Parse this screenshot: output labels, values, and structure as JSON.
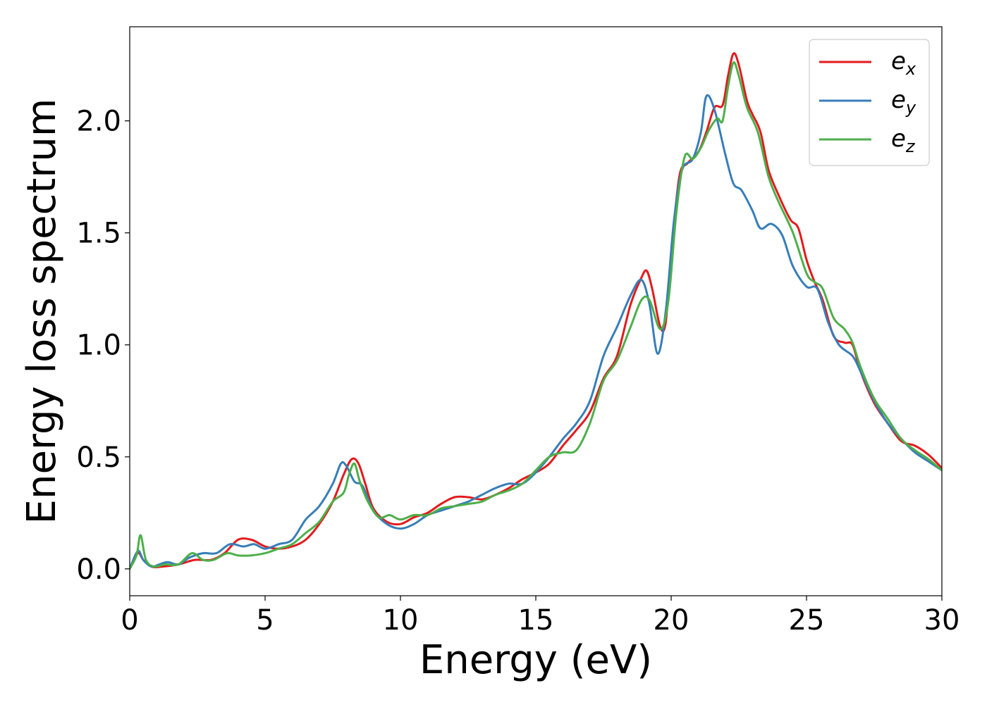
{
  "chart_data": {
    "type": "line",
    "title": "",
    "xlabel": "Energy (eV)",
    "ylabel": "Energy loss spectrum",
    "xlim": [
      0,
      30
    ],
    "ylim": [
      -0.12,
      2.42
    ],
    "xticks": [
      0,
      5,
      10,
      15,
      20,
      25,
      30
    ],
    "xtick_labels": [
      "0",
      "5",
      "10",
      "15",
      "20",
      "25",
      "30"
    ],
    "yticks": [
      0.0,
      0.5,
      1.0,
      1.5,
      2.0
    ],
    "ytick_labels": [
      "0.0",
      "0.5",
      "1.0",
      "1.5",
      "2.0"
    ],
    "grid": false,
    "legend_position": "top-right",
    "series": [
      {
        "name": "e_x",
        "legend_base": "e",
        "legend_sub": "x",
        "color": "#e41a1c",
        "points": [
          [
            0,
            0.0
          ],
          [
            0.3,
            0.07
          ],
          [
            0.5,
            0.04
          ],
          [
            0.8,
            0.01
          ],
          [
            1.2,
            0.01
          ],
          [
            1.8,
            0.02
          ],
          [
            2.4,
            0.04
          ],
          [
            3.0,
            0.04
          ],
          [
            3.5,
            0.07
          ],
          [
            4.0,
            0.13
          ],
          [
            4.5,
            0.13
          ],
          [
            5.0,
            0.1
          ],
          [
            5.5,
            0.09
          ],
          [
            6.0,
            0.1
          ],
          [
            6.5,
            0.13
          ],
          [
            7.0,
            0.2
          ],
          [
            7.5,
            0.3
          ],
          [
            7.9,
            0.42
          ],
          [
            8.2,
            0.49
          ],
          [
            8.45,
            0.47
          ],
          [
            8.7,
            0.38
          ],
          [
            9.0,
            0.27
          ],
          [
            9.5,
            0.21
          ],
          [
            10.0,
            0.2
          ],
          [
            10.5,
            0.23
          ],
          [
            11.0,
            0.25
          ],
          [
            11.5,
            0.29
          ],
          [
            12.0,
            0.32
          ],
          [
            12.5,
            0.32
          ],
          [
            13.0,
            0.31
          ],
          [
            13.5,
            0.33
          ],
          [
            14.0,
            0.36
          ],
          [
            14.5,
            0.4
          ],
          [
            15.0,
            0.43
          ],
          [
            15.5,
            0.47
          ],
          [
            16.0,
            0.55
          ],
          [
            16.5,
            0.62
          ],
          [
            17.0,
            0.7
          ],
          [
            17.5,
            0.85
          ],
          [
            18.0,
            0.95
          ],
          [
            18.5,
            1.18
          ],
          [
            18.9,
            1.3
          ],
          [
            19.1,
            1.33
          ],
          [
            19.3,
            1.25
          ],
          [
            19.6,
            1.08
          ],
          [
            19.8,
            1.1
          ],
          [
            20.0,
            1.4
          ],
          [
            20.3,
            1.75
          ],
          [
            20.6,
            1.81
          ],
          [
            21.0,
            1.86
          ],
          [
            21.3,
            1.95
          ],
          [
            21.6,
            2.06
          ],
          [
            21.9,
            2.07
          ],
          [
            22.1,
            2.2
          ],
          [
            22.3,
            2.3
          ],
          [
            22.5,
            2.25
          ],
          [
            22.8,
            2.09
          ],
          [
            23.0,
            2.03
          ],
          [
            23.3,
            1.95
          ],
          [
            23.6,
            1.78
          ],
          [
            24.0,
            1.66
          ],
          [
            24.4,
            1.56
          ],
          [
            24.7,
            1.52
          ],
          [
            25.0,
            1.38
          ],
          [
            25.3,
            1.28
          ],
          [
            25.6,
            1.2
          ],
          [
            26.0,
            1.04
          ],
          [
            26.4,
            1.01
          ],
          [
            26.7,
            1.0
          ],
          [
            27.0,
            0.88
          ],
          [
            27.5,
            0.74
          ],
          [
            28.0,
            0.65
          ],
          [
            28.5,
            0.57
          ],
          [
            29.0,
            0.55
          ],
          [
            29.5,
            0.51
          ],
          [
            30.0,
            0.45
          ]
        ]
      },
      {
        "name": "e_y",
        "legend_base": "e",
        "legend_sub": "y",
        "color": "#377eb8",
        "points": [
          [
            0,
            0.0
          ],
          [
            0.3,
            0.08
          ],
          [
            0.5,
            0.04
          ],
          [
            0.8,
            0.01
          ],
          [
            1.1,
            0.02
          ],
          [
            1.4,
            0.03
          ],
          [
            1.8,
            0.02
          ],
          [
            2.2,
            0.05
          ],
          [
            2.7,
            0.07
          ],
          [
            3.2,
            0.07
          ],
          [
            3.7,
            0.11
          ],
          [
            4.2,
            0.1
          ],
          [
            4.6,
            0.11
          ],
          [
            5.0,
            0.09
          ],
          [
            5.5,
            0.11
          ],
          [
            6.0,
            0.13
          ],
          [
            6.5,
            0.22
          ],
          [
            7.0,
            0.28
          ],
          [
            7.5,
            0.38
          ],
          [
            7.8,
            0.47
          ],
          [
            8.0,
            0.46
          ],
          [
            8.3,
            0.39
          ],
          [
            8.6,
            0.37
          ],
          [
            9.0,
            0.26
          ],
          [
            9.5,
            0.2
          ],
          [
            10.0,
            0.18
          ],
          [
            10.5,
            0.2
          ],
          [
            11.0,
            0.24
          ],
          [
            11.5,
            0.26
          ],
          [
            12.0,
            0.28
          ],
          [
            12.5,
            0.3
          ],
          [
            13.0,
            0.33
          ],
          [
            13.5,
            0.36
          ],
          [
            14.0,
            0.38
          ],
          [
            14.5,
            0.38
          ],
          [
            15.0,
            0.43
          ],
          [
            15.5,
            0.5
          ],
          [
            16.0,
            0.58
          ],
          [
            16.5,
            0.65
          ],
          [
            17.0,
            0.75
          ],
          [
            17.5,
            0.95
          ],
          [
            18.0,
            1.08
          ],
          [
            18.5,
            1.22
          ],
          [
            18.9,
            1.29
          ],
          [
            19.2,
            1.18
          ],
          [
            19.5,
            0.96
          ],
          [
            19.8,
            1.15
          ],
          [
            20.1,
            1.55
          ],
          [
            20.4,
            1.78
          ],
          [
            20.8,
            1.83
          ],
          [
            21.1,
            1.95
          ],
          [
            21.3,
            2.11
          ],
          [
            21.6,
            2.05
          ],
          [
            22.0,
            1.85
          ],
          [
            22.3,
            1.72
          ],
          [
            22.6,
            1.69
          ],
          [
            23.0,
            1.6
          ],
          [
            23.3,
            1.52
          ],
          [
            23.7,
            1.54
          ],
          [
            24.1,
            1.49
          ],
          [
            24.5,
            1.35
          ],
          [
            25.0,
            1.26
          ],
          [
            25.4,
            1.25
          ],
          [
            25.8,
            1.1
          ],
          [
            26.2,
            1.0
          ],
          [
            26.7,
            0.95
          ],
          [
            27.0,
            0.88
          ],
          [
            27.5,
            0.75
          ],
          [
            28.0,
            0.65
          ],
          [
            28.5,
            0.58
          ],
          [
            29.0,
            0.52
          ],
          [
            29.5,
            0.48
          ],
          [
            30.0,
            0.44
          ]
        ]
      },
      {
        "name": "e_z",
        "legend_base": "e",
        "legend_sub": "z",
        "color": "#4daf4a",
        "points": [
          [
            0,
            0.0
          ],
          [
            0.25,
            0.06
          ],
          [
            0.4,
            0.15
          ],
          [
            0.6,
            0.04
          ],
          [
            0.9,
            0.01
          ],
          [
            1.3,
            0.02
          ],
          [
            1.8,
            0.02
          ],
          [
            2.3,
            0.07
          ],
          [
            2.7,
            0.04
          ],
          [
            3.1,
            0.04
          ],
          [
            3.6,
            0.07
          ],
          [
            4.0,
            0.06
          ],
          [
            4.5,
            0.06
          ],
          [
            5.0,
            0.07
          ],
          [
            5.5,
            0.09
          ],
          [
            6.0,
            0.11
          ],
          [
            6.5,
            0.16
          ],
          [
            7.0,
            0.21
          ],
          [
            7.5,
            0.3
          ],
          [
            7.9,
            0.34
          ],
          [
            8.1,
            0.42
          ],
          [
            8.3,
            0.47
          ],
          [
            8.5,
            0.39
          ],
          [
            8.8,
            0.3
          ],
          [
            9.2,
            0.23
          ],
          [
            9.6,
            0.24
          ],
          [
            10.0,
            0.22
          ],
          [
            10.5,
            0.24
          ],
          [
            11.0,
            0.24
          ],
          [
            11.5,
            0.27
          ],
          [
            12.0,
            0.28
          ],
          [
            12.5,
            0.29
          ],
          [
            13.0,
            0.3
          ],
          [
            13.5,
            0.33
          ],
          [
            14.0,
            0.35
          ],
          [
            14.5,
            0.38
          ],
          [
            15.0,
            0.44
          ],
          [
            15.5,
            0.5
          ],
          [
            16.0,
            0.52
          ],
          [
            16.5,
            0.53
          ],
          [
            17.0,
            0.65
          ],
          [
            17.5,
            0.84
          ],
          [
            18.0,
            0.93
          ],
          [
            18.5,
            1.08
          ],
          [
            18.9,
            1.2
          ],
          [
            19.2,
            1.2
          ],
          [
            19.6,
            1.07
          ],
          [
            19.9,
            1.2
          ],
          [
            20.2,
            1.6
          ],
          [
            20.5,
            1.84
          ],
          [
            20.8,
            1.83
          ],
          [
            21.1,
            1.88
          ],
          [
            21.4,
            1.96
          ],
          [
            21.7,
            2.01
          ],
          [
            21.9,
            2.0
          ],
          [
            22.1,
            2.15
          ],
          [
            22.3,
            2.26
          ],
          [
            22.5,
            2.2
          ],
          [
            22.8,
            2.06
          ],
          [
            23.2,
            1.95
          ],
          [
            23.6,
            1.75
          ],
          [
            24.0,
            1.63
          ],
          [
            24.5,
            1.5
          ],
          [
            25.0,
            1.32
          ],
          [
            25.3,
            1.28
          ],
          [
            25.6,
            1.25
          ],
          [
            26.0,
            1.12
          ],
          [
            26.4,
            1.07
          ],
          [
            26.7,
            1.01
          ],
          [
            27.0,
            0.9
          ],
          [
            27.5,
            0.76
          ],
          [
            28.0,
            0.67
          ],
          [
            28.5,
            0.58
          ],
          [
            29.0,
            0.53
          ],
          [
            29.5,
            0.49
          ],
          [
            30.0,
            0.44
          ]
        ]
      }
    ]
  }
}
